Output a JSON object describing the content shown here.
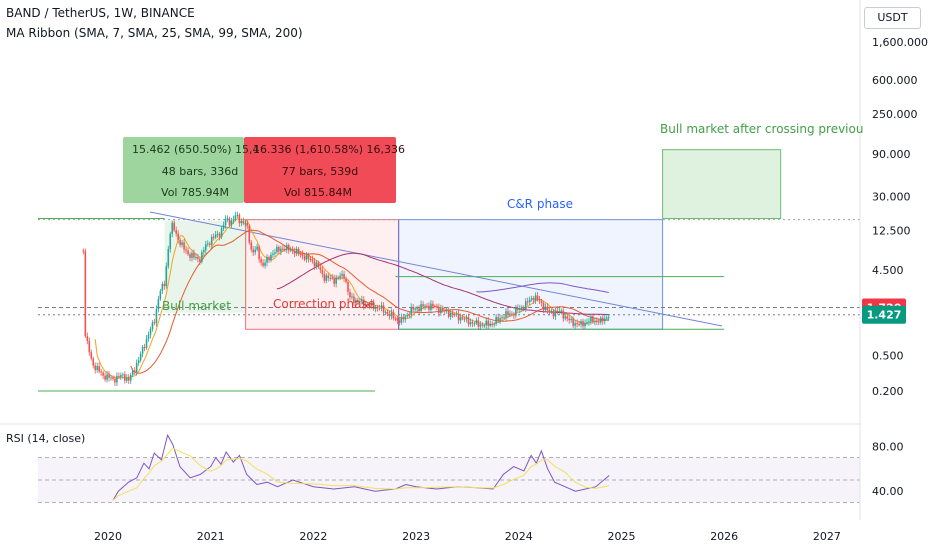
{
  "header": {
    "symbol_line": "BAND / TetherUS, 1W, BINANCE",
    "indicator_line": "MA Ribbon (SMA, 7, SMA, 25, SMA, 99, SMA, 200)",
    "currency_button": "USDT"
  },
  "rsi_panel": {
    "label": "RSI (14, close)",
    "ticks": [
      "80.00",
      "40.00"
    ]
  },
  "colors": {
    "up": "#26a69a",
    "down": "#ef5350",
    "sma7": "#f4a21e",
    "sma25": "#e65c30",
    "sma99": "#a8336f",
    "sma200": "#7e57c2",
    "rsi": "#7e57c2",
    "rsi_ma": "#f1e15b",
    "green_zone": "#4caf50",
    "red_zone": "#f23645",
    "blue_zone": "#2962ff"
  },
  "chart_data": {
    "type": "candlestick",
    "scale": "log",
    "x_ticks": [
      "2020",
      "2021",
      "2022",
      "2023",
      "2024",
      "2025",
      "2026",
      "2027"
    ],
    "y_ticks": [
      "1,600.000",
      "600.000",
      "250.000",
      "90.000",
      "30.000",
      "12.500",
      "4.500",
      "0.500",
      "0.200"
    ],
    "y_tick_values": [
      1600,
      600,
      250,
      90,
      30,
      12.5,
      4.5,
      0.5,
      0.2
    ],
    "price_labels": [
      {
        "text": "1.720",
        "value": 1.72,
        "color": "#f23645"
      },
      {
        "text": "1.427",
        "value": 1.427,
        "color": "#089981"
      }
    ],
    "annotations": {
      "bull_market": "Bull market",
      "correction_phase": "Correction phase",
      "cr_phase": "C&R phase",
      "bull_after": "Bull market after crossing previou"
    },
    "measure_green": {
      "line1": "15.462 (650.50%) 15,4",
      "line2": "48 bars, 336d",
      "line3": "Vol 785.94M"
    },
    "measure_red": {
      "line1": "16.336 (1,610.58%) 16,336",
      "line2": "77 bars, 539d",
      "line3": "Vol 815.84M"
    },
    "price_path": [
      [
        2019.76,
        7.5
      ],
      [
        2019.78,
        0.8
      ],
      [
        2019.85,
        0.4
      ],
      [
        2019.95,
        0.3
      ],
      [
        2020.05,
        0.27
      ],
      [
        2020.15,
        0.3
      ],
      [
        2020.2,
        0.26
      ],
      [
        2020.3,
        0.45
      ],
      [
        2020.4,
        0.9
      ],
      [
        2020.45,
        1.2
      ],
      [
        2020.5,
        2.5
      ],
      [
        2020.55,
        3.2
      ],
      [
        2020.6,
        11
      ],
      [
        2020.63,
        14.5
      ],
      [
        2020.7,
        9
      ],
      [
        2020.8,
        6.5
      ],
      [
        2020.9,
        6.0
      ],
      [
        2020.95,
        8.5
      ],
      [
        2021.05,
        11
      ],
      [
        2021.1,
        12
      ],
      [
        2021.15,
        17
      ],
      [
        2021.2,
        15.5
      ],
      [
        2021.25,
        18.5
      ],
      [
        2021.3,
        15.5
      ],
      [
        2021.35,
        14.5
      ],
      [
        2021.4,
        7
      ],
      [
        2021.45,
        7.8
      ],
      [
        2021.5,
        5.0
      ],
      [
        2021.55,
        5.8
      ],
      [
        2021.6,
        7.0
      ],
      [
        2021.7,
        8.0
      ],
      [
        2021.8,
        7.5
      ],
      [
        2021.9,
        6.5
      ],
      [
        2022.0,
        5.6
      ],
      [
        2022.05,
        4.8
      ],
      [
        2022.1,
        3.8
      ],
      [
        2022.2,
        3.5
      ],
      [
        2022.3,
        4.0
      ],
      [
        2022.35,
        2.2
      ],
      [
        2022.45,
        2.0
      ],
      [
        2022.55,
        1.8
      ],
      [
        2022.65,
        1.7
      ],
      [
        2022.75,
        1.4
      ],
      [
        2022.85,
        1.2
      ],
      [
        2022.95,
        1.6
      ],
      [
        2023.05,
        1.75
      ],
      [
        2023.15,
        1.8
      ],
      [
        2023.25,
        1.6
      ],
      [
        2023.35,
        1.45
      ],
      [
        2023.45,
        1.3
      ],
      [
        2023.55,
        1.15
      ],
      [
        2023.65,
        1.1
      ],
      [
        2023.75,
        1.15
      ],
      [
        2023.85,
        1.4
      ],
      [
        2023.95,
        1.5
      ],
      [
        2024.05,
        1.8
      ],
      [
        2024.15,
        2.3
      ],
      [
        2024.2,
        2.0
      ],
      [
        2024.3,
        1.5
      ],
      [
        2024.4,
        1.55
      ],
      [
        2024.5,
        1.2
      ],
      [
        2024.6,
        1.1
      ],
      [
        2024.7,
        1.25
      ],
      [
        2024.8,
        1.2
      ],
      [
        2024.88,
        1.427
      ]
    ],
    "rsi_path": [
      [
        2020.05,
        32
      ],
      [
        2020.1,
        40
      ],
      [
        2020.2,
        48
      ],
      [
        2020.28,
        52
      ],
      [
        2020.35,
        65
      ],
      [
        2020.4,
        60
      ],
      [
        2020.45,
        74
      ],
      [
        2020.52,
        68
      ],
      [
        2020.58,
        90
      ],
      [
        2020.63,
        82
      ],
      [
        2020.7,
        62
      ],
      [
        2020.8,
        52
      ],
      [
        2020.9,
        55
      ],
      [
        2021.0,
        62
      ],
      [
        2021.05,
        70
      ],
      [
        2021.1,
        64
      ],
      [
        2021.15,
        75
      ],
      [
        2021.22,
        66
      ],
      [
        2021.28,
        72
      ],
      [
        2021.35,
        55
      ],
      [
        2021.45,
        46
      ],
      [
        2021.55,
        48
      ],
      [
        2021.65,
        44
      ],
      [
        2021.8,
        50
      ],
      [
        2022.0,
        44
      ],
      [
        2022.2,
        42
      ],
      [
        2022.4,
        44
      ],
      [
        2022.6,
        40
      ],
      [
        2022.8,
        42
      ],
      [
        2022.9,
        46
      ],
      [
        2023.0,
        44
      ],
      [
        2023.2,
        42
      ],
      [
        2023.4,
        44
      ],
      [
        2023.6,
        43
      ],
      [
        2023.75,
        42
      ],
      [
        2023.85,
        55
      ],
      [
        2023.95,
        62
      ],
      [
        2024.05,
        58
      ],
      [
        2024.12,
        72
      ],
      [
        2024.17,
        65
      ],
      [
        2024.22,
        76
      ],
      [
        2024.28,
        60
      ],
      [
        2024.35,
        48
      ],
      [
        2024.45,
        44
      ],
      [
        2024.55,
        40
      ],
      [
        2024.65,
        42
      ],
      [
        2024.75,
        44
      ],
      [
        2024.88,
        54
      ]
    ]
  }
}
